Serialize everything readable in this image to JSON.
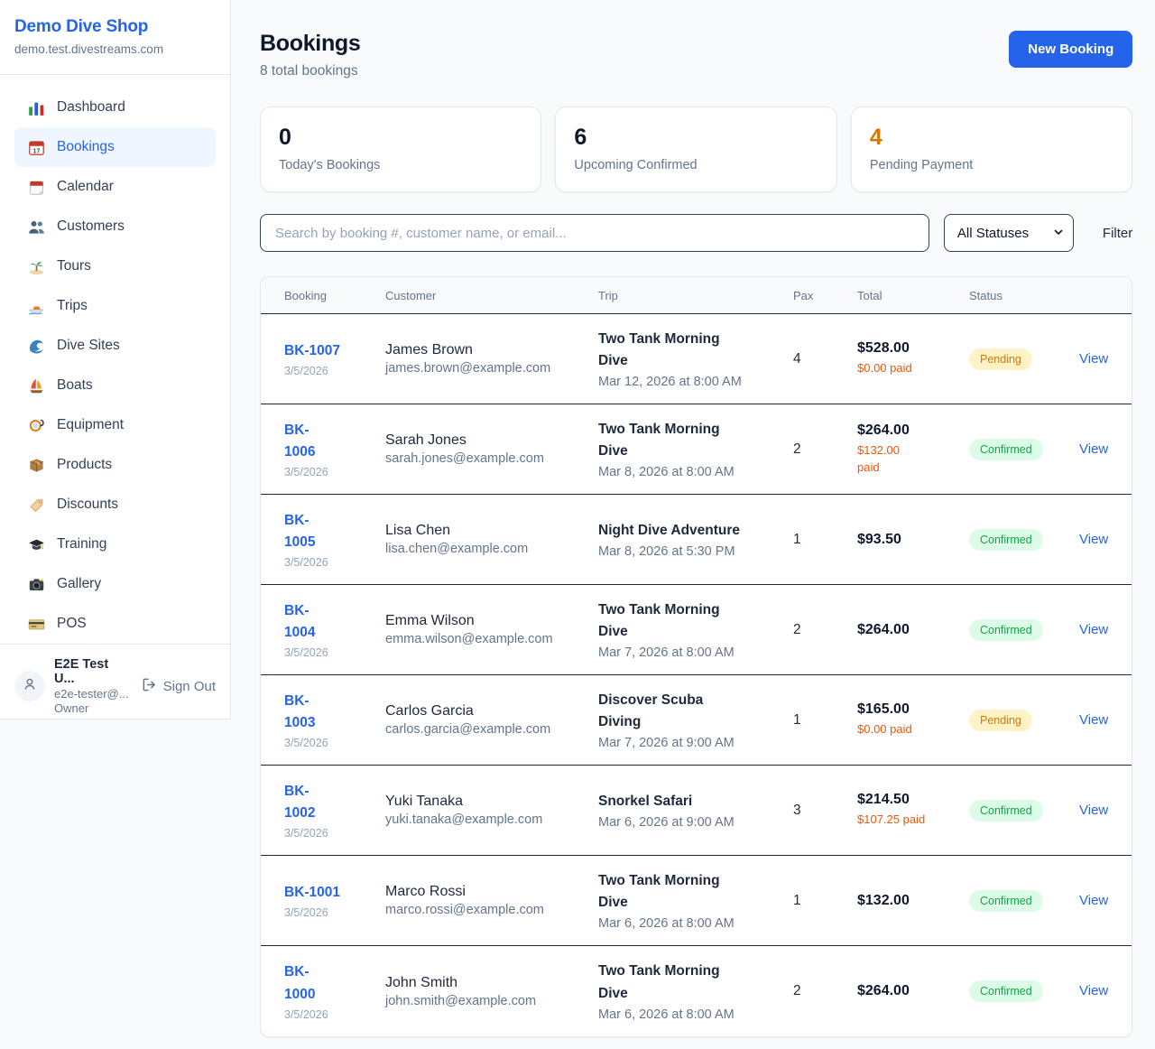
{
  "colors": {
    "accent_blue": "#2563eb",
    "pending_text": "#d97706",
    "pending_bg": "#fef3c7",
    "confirmed_text": "#16a34a",
    "confirmed_bg": "#dcfce7",
    "paid_orange": "#ea580c"
  },
  "sidebar": {
    "brand": "Demo Dive Shop",
    "domain": "demo.test.divestreams.com",
    "items": [
      {
        "label": "Dashboard",
        "icon": "bar-chart",
        "active": false
      },
      {
        "label": "Bookings",
        "icon": "calendar-date",
        "active": true
      },
      {
        "label": "Calendar",
        "icon": "tear-off-calendar",
        "active": false
      },
      {
        "label": "Customers",
        "icon": "people",
        "active": false
      },
      {
        "label": "Tours",
        "icon": "island",
        "active": false
      },
      {
        "label": "Trips",
        "icon": "speedboat",
        "active": false
      },
      {
        "label": "Dive Sites",
        "icon": "wave",
        "active": false
      },
      {
        "label": "Boats",
        "icon": "sailboat",
        "active": false
      },
      {
        "label": "Equipment",
        "icon": "diving-mask",
        "active": false
      },
      {
        "label": "Products",
        "icon": "package",
        "active": false
      },
      {
        "label": "Discounts",
        "icon": "tag",
        "active": false
      },
      {
        "label": "Training",
        "icon": "graduation-cap",
        "active": false
      },
      {
        "label": "Gallery",
        "icon": "camera",
        "active": false
      },
      {
        "label": "POS",
        "icon": "credit-card",
        "active": false
      }
    ],
    "user": {
      "name": "E2E Test U...",
      "email": "e2e-tester@...",
      "role": "Owner",
      "sign_out_label": "Sign Out"
    }
  },
  "header": {
    "title": "Bookings",
    "subtitle": "8 total bookings",
    "new_booking_label": "New Booking"
  },
  "stats": [
    {
      "value": "0",
      "label": "Today's Bookings",
      "accent": null
    },
    {
      "value": "6",
      "label": "Upcoming Confirmed",
      "accent": null
    },
    {
      "value": "4",
      "label": "Pending Payment",
      "accent": "#d97706"
    }
  ],
  "filters": {
    "search_placeholder": "Search by booking #, customer name, or email...",
    "status_select_value": "All Statuses",
    "filter_label": "Filter"
  },
  "table": {
    "columns": [
      "Booking",
      "Customer",
      "Trip",
      "Pax",
      "Total",
      "Status"
    ],
    "rows": [
      {
        "id": "BK-1007",
        "id_display": "BK-1007",
        "date": "3/5/2026",
        "customer_name": "James Brown",
        "customer_email": "james.brown@example.com",
        "trip_title": "Two Tank Morning Dive",
        "trip_display": "Two Tank Morning\nDive",
        "trip_datetime": "Mar 12, 2026 at 8:00 AM",
        "pax": "4",
        "total": "$528.00",
        "paid_display": "$0.00 paid",
        "status": "Pending",
        "view_label": "View"
      },
      {
        "id": "BK-1006",
        "id_display": "BK-\n1006",
        "date": "3/5/2026",
        "customer_name": "Sarah Jones",
        "customer_email": "sarah.jones@example.com",
        "trip_title": "Two Tank Morning Dive",
        "trip_display": "Two Tank Morning\nDive",
        "trip_datetime": "Mar 8, 2026 at 8:00 AM",
        "pax": "2",
        "total": "$264.00",
        "paid_display": "$132.00\npaid",
        "status": "Confirmed",
        "view_label": "View"
      },
      {
        "id": "BK-1005",
        "id_display": "BK-\n1005",
        "date": "3/5/2026",
        "customer_name": "Lisa Chen",
        "customer_email": "lisa.chen@example.com",
        "trip_title": "Night Dive Adventure",
        "trip_display": "Night Dive Adventure",
        "trip_datetime": "Mar 8, 2026 at 5:30 PM",
        "pax": "1",
        "total": "$93.50",
        "paid_display": null,
        "status": "Confirmed",
        "view_label": "View"
      },
      {
        "id": "BK-1004",
        "id_display": "BK-\n1004",
        "date": "3/5/2026",
        "customer_name": "Emma Wilson",
        "customer_email": "emma.wilson@example.com",
        "trip_title": "Two Tank Morning Dive",
        "trip_display": "Two Tank Morning\nDive",
        "trip_datetime": "Mar 7, 2026 at 8:00 AM",
        "pax": "2",
        "total": "$264.00",
        "paid_display": null,
        "status": "Confirmed",
        "view_label": "View"
      },
      {
        "id": "BK-1003",
        "id_display": "BK-\n1003",
        "date": "3/5/2026",
        "customer_name": "Carlos Garcia",
        "customer_email": "carlos.garcia@example.com",
        "trip_title": "Discover Scuba Diving",
        "trip_display": "Discover Scuba\nDiving",
        "trip_datetime": "Mar 7, 2026 at 9:00 AM",
        "pax": "1",
        "total": "$165.00",
        "paid_display": "$0.00 paid",
        "status": "Pending",
        "view_label": "View"
      },
      {
        "id": "BK-1002",
        "id_display": "BK-\n1002",
        "date": "3/5/2026",
        "customer_name": "Yuki Tanaka",
        "customer_email": "yuki.tanaka@example.com",
        "trip_title": "Snorkel Safari",
        "trip_display": "Snorkel Safari",
        "trip_datetime": "Mar 6, 2026 at 9:00 AM",
        "pax": "3",
        "total": "$214.50",
        "paid_display": "$107.25 paid",
        "status": "Confirmed",
        "view_label": "View"
      },
      {
        "id": "BK-1001",
        "id_display": "BK-1001",
        "date": "3/5/2026",
        "customer_name": "Marco Rossi",
        "customer_email": "marco.rossi@example.com",
        "trip_title": "Two Tank Morning Dive",
        "trip_display": "Two Tank Morning\nDive",
        "trip_datetime": "Mar 6, 2026 at 8:00 AM",
        "pax": "1",
        "total": "$132.00",
        "paid_display": null,
        "status": "Confirmed",
        "view_label": "View"
      },
      {
        "id": "BK-1000",
        "id_display": "BK-\n1000",
        "date": "3/5/2026",
        "customer_name": "John Smith",
        "customer_email": "john.smith@example.com",
        "trip_title": "Two Tank Morning Dive",
        "trip_display": "Two Tank Morning\nDive",
        "trip_datetime": "Mar 6, 2026 at 8:00 AM",
        "pax": "2",
        "total": "$264.00",
        "paid_display": null,
        "status": "Confirmed",
        "view_label": "View"
      }
    ]
  }
}
